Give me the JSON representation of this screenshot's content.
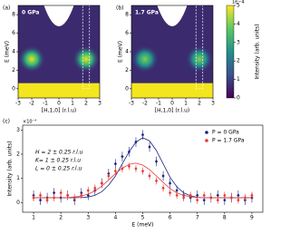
{
  "chart_data": [
    {
      "type": "heatmap",
      "panel": "(a)",
      "title": "0 GPa",
      "xlabel": "[H,1,0] (r.l.u)",
      "ylabel": "E (meV)",
      "xlim": [
        -3,
        3
      ],
      "xticks": [
        -3,
        -2,
        -1,
        0,
        1,
        2,
        3
      ],
      "ylim": [
        -1,
        9
      ],
      "yticks": [
        0,
        2,
        4,
        6,
        8
      ]
    },
    {
      "type": "heatmap",
      "panel": "(b)",
      "title": "1.7 GPa",
      "xlabel": "[H,1,0] (r.l.u)",
      "ylabel": "E (meV)",
      "xlim": [
        -3,
        3
      ],
      "xticks": [
        -3,
        -2,
        -1,
        0,
        1,
        2,
        3
      ],
      "ylim": [
        -1,
        9
      ],
      "yticks": [
        0,
        2,
        4,
        6,
        8
      ],
      "colorbar": {
        "label": "Intensity (arb. units)",
        "offset_label": "1e−4",
        "lim": [
          0,
          5
        ],
        "ticks": [
          0,
          1,
          2,
          3,
          4,
          5
        ]
      }
    },
    {
      "type": "scatter",
      "panel": "(c)",
      "xlabel": "E (meV)",
      "ylabel": "Intensity (arb. units)",
      "offset_label": "×10⁻⁴",
      "annotations": [
        "H = 2 ± 0.25 r.l.u",
        "K= 1 ± 0.25 r.l.u",
        "L = 0 ± 0.25 r.l.u"
      ],
      "xlim": [
        0.6,
        9.4
      ],
      "xticks": [
        1,
        2,
        3,
        4,
        5,
        6,
        7,
        8,
        9
      ],
      "ylim": [
        -0.4,
        3.2
      ],
      "yticks": [
        0,
        1,
        2,
        3
      ],
      "x": [
        1,
        1.25,
        1.5,
        1.75,
        2,
        2.25,
        2.5,
        2.75,
        3,
        3.25,
        3.5,
        3.75,
        4,
        4.25,
        4.5,
        4.75,
        5,
        5.25,
        5.5,
        5.75,
        6,
        6.25,
        6.5,
        6.75,
        7,
        7.25,
        7.5,
        7.75,
        8,
        8.25,
        8.5,
        8.75,
        9
      ],
      "series": [
        {
          "name": "P = 0 GPa",
          "color": "#1a237e",
          "error": 0.2,
          "values": [
            0.3,
            0.1,
            0.2,
            0.4,
            0.2,
            0.3,
            0.1,
            0.4,
            0.3,
            0.5,
            0.8,
            1.2,
            1.6,
            1.9,
            2.1,
            2.5,
            2.8,
            2.3,
            1.7,
            1.1,
            0.8,
            0.5,
            0.3,
            0.2,
            0.3,
            0.1,
            0.2,
            0.3,
            0.1,
            0.2,
            0.3,
            0.1,
            0.2
          ],
          "fit": [
            0.2,
            0.2,
            0.2,
            0.2,
            0.2,
            0.2,
            0.2,
            0.21,
            0.23,
            0.3,
            0.45,
            0.72,
            1.1,
            1.6,
            2.1,
            2.5,
            2.68,
            2.55,
            2.15,
            1.6,
            1.05,
            0.65,
            0.4,
            0.28,
            0.22,
            0.2,
            0.2,
            0.2,
            0.2,
            0.2,
            0.2,
            0.2,
            0.2
          ]
        },
        {
          "name": "P = 1.7 GPa",
          "color": "#e53935",
          "error": 0.15,
          "values": [
            0.2,
            0.3,
            0.1,
            0.2,
            0.4,
            0.3,
            0.2,
            0.3,
            0.5,
            0.6,
            0.8,
            1.1,
            1.3,
            1.4,
            1.5,
            1.4,
            1.3,
            1.1,
            0.9,
            0.6,
            0.4,
            0.3,
            0.2,
            0.3,
            0.1,
            0.3,
            0.2,
            0.1,
            0.3,
            0.2,
            0.1,
            0.2,
            0.3
          ],
          "fit": [
            0.2,
            0.2,
            0.2,
            0.2,
            0.2,
            0.21,
            0.23,
            0.27,
            0.35,
            0.48,
            0.68,
            0.93,
            1.2,
            1.42,
            1.58,
            1.63,
            1.55,
            1.36,
            1.1,
            0.83,
            0.58,
            0.4,
            0.3,
            0.24,
            0.21,
            0.2,
            0.2,
            0.2,
            0.2,
            0.2,
            0.2,
            0.2,
            0.2
          ]
        }
      ]
    }
  ]
}
